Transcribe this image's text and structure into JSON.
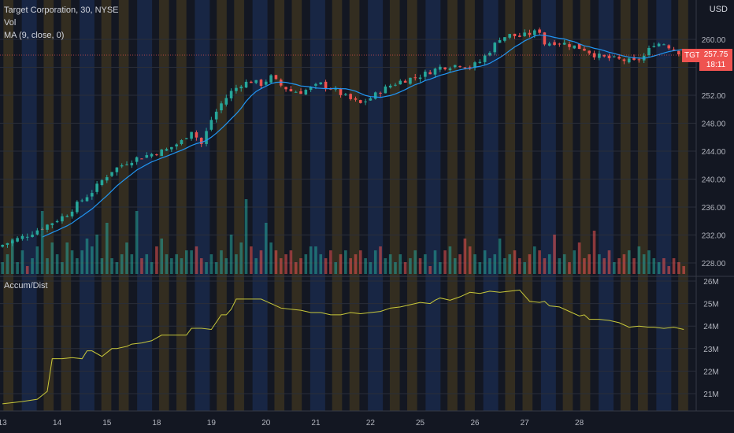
{
  "header": {
    "title": "Target Corporation, 30, NYSE",
    "vol_label": "Vol",
    "ma_label": "MA (9, close, 0)",
    "currency": "USD",
    "sub_title": "Accum/Dist"
  },
  "price_tags": {
    "ticker": "TGT",
    "last_price": "257.75",
    "countdown": "18:11"
  },
  "colors": {
    "background": "#131722",
    "up": "#26a69a",
    "down": "#ef5350",
    "ma": "#2196f3",
    "ad": "#c8c83a",
    "stripe_blue": "#1e3a6e",
    "stripe_orange": "#5a4a1e"
  },
  "chart_data": [
    {
      "type": "candlestick",
      "title": "Target Corporation, 30, NYSE",
      "ylim": [
        228,
        262
      ],
      "y_ticks": [
        "228.00",
        "232.00",
        "236.00",
        "240.00",
        "244.00",
        "248.00",
        "252.00",
        "256.00",
        "260.00"
      ],
      "x_ticks": [
        "13",
        "14",
        "15",
        "18",
        "19",
        "20",
        "21",
        "22",
        "25",
        "26",
        "27",
        "28"
      ],
      "close_path": [
        [
          0,
          230.6
        ],
        [
          5,
          232.0
        ],
        [
          10,
          233.8
        ],
        [
          13,
          235.0
        ],
        [
          15,
          236.4
        ],
        [
          18,
          238.2
        ],
        [
          20,
          239.8
        ],
        [
          22,
          241.2
        ],
        [
          25,
          242.4
        ],
        [
          27,
          243.0
        ],
        [
          30,
          243.6
        ],
        [
          33,
          244.2
        ],
        [
          36,
          245.4
        ],
        [
          38,
          247.0
        ],
        [
          40,
          245.0
        ],
        [
          42,
          248.5
        ],
        [
          44,
          250.8
        ],
        [
          46,
          252.5
        ],
        [
          48,
          253.6
        ],
        [
          50,
          254.0
        ],
        [
          52,
          253.6
        ],
        [
          54,
          254.6
        ],
        [
          56,
          253.4
        ],
        [
          58,
          252.6
        ],
        [
          60,
          252.5
        ],
        [
          62,
          253.0
        ],
        [
          64,
          253.6
        ],
        [
          66,
          253.0
        ],
        [
          68,
          252.2
        ],
        [
          70,
          251.4
        ],
        [
          72,
          250.8
        ],
        [
          74,
          251.6
        ],
        [
          76,
          252.6
        ],
        [
          78,
          253.4
        ],
        [
          80,
          254.0
        ],
        [
          82,
          254.4
        ],
        [
          84,
          254.8
        ],
        [
          86,
          255.4
        ],
        [
          88,
          256.0
        ],
        [
          90,
          256.2
        ],
        [
          92,
          256.4
        ],
        [
          94,
          256.0
        ],
        [
          96,
          256.8
        ],
        [
          98,
          258.4
        ],
        [
          100,
          260.2
        ],
        [
          102,
          260.6
        ],
        [
          104,
          260.4
        ],
        [
          106,
          260.8
        ],
        [
          108,
          261.2
        ],
        [
          109,
          259.4
        ],
        [
          111,
          259.6
        ],
        [
          113,
          259.4
        ],
        [
          115,
          259.0
        ],
        [
          117,
          258.6
        ],
        [
          119,
          257.8
        ],
        [
          121,
          257.4
        ],
        [
          123,
          257.2
        ],
        [
          125,
          257.0
        ],
        [
          127,
          256.8
        ],
        [
          129,
          257.6
        ],
        [
          131,
          259.4
        ],
        [
          133,
          259.4
        ],
        [
          135,
          258.6
        ],
        [
          137,
          257.8
        ]
      ],
      "annotation": "MA (9, close, 0)"
    },
    {
      "type": "bar",
      "title": "Vol",
      "note": "volume histogram, relative heights",
      "values": [
        3,
        5,
        9,
        3,
        6,
        2,
        4,
        7,
        16,
        4,
        8,
        5,
        3,
        8,
        6,
        4,
        6,
        9,
        7,
        10,
        4,
        13,
        4,
        3,
        5,
        8,
        5,
        16,
        4,
        5,
        3,
        7,
        9,
        5,
        4,
        5,
        4,
        6,
        6,
        7,
        4,
        3,
        5,
        3,
        6,
        4,
        10,
        5,
        8,
        19,
        7,
        4,
        6,
        13,
        8,
        6,
        4,
        5,
        6,
        3,
        4,
        5,
        7,
        7,
        5,
        4,
        6,
        3,
        5,
        6,
        4,
        5,
        6,
        4,
        3,
        6,
        7,
        4,
        5,
        3,
        5,
        3,
        4,
        6,
        4,
        5,
        2,
        6,
        3,
        6,
        7,
        4,
        5,
        9,
        7,
        5,
        3,
        6,
        4,
        5,
        9,
        4,
        5,
        6,
        4,
        3,
        5,
        7,
        6,
        4,
        5,
        10,
        4,
        5,
        3,
        6,
        8,
        4,
        5,
        11,
        5,
        4,
        6,
        3,
        4,
        5,
        6,
        4,
        7,
        5,
        6,
        4,
        3,
        4,
        2,
        4,
        3,
        2,
        3
      ]
    },
    {
      "type": "line",
      "title": "Accum/Dist",
      "ylim": [
        20.5,
        26.2
      ],
      "y_ticks": [
        "21M",
        "22M",
        "23M",
        "24M",
        "25M",
        "26M"
      ],
      "x": [
        0,
        4,
        7,
        9,
        10,
        12,
        14,
        16,
        17,
        18,
        20,
        22,
        23,
        25,
        26,
        28,
        30,
        32,
        34,
        36,
        37,
        38,
        40,
        42,
        44,
        45,
        46,
        47,
        48,
        49,
        52,
        54,
        56,
        58,
        60,
        62,
        64,
        66,
        68,
        70,
        72,
        74,
        76,
        78,
        80,
        82,
        84,
        86,
        87,
        88,
        90,
        92,
        94,
        96,
        98,
        100,
        102,
        104,
        106,
        108,
        109,
        110,
        112,
        114,
        116,
        117,
        118,
        120,
        122,
        124,
        126,
        128,
        130,
        131,
        133,
        135,
        137
      ],
      "values": [
        20.55,
        20.65,
        20.75,
        21.1,
        22.55,
        22.55,
        22.6,
        22.55,
        22.9,
        22.9,
        22.65,
        23.0,
        23.0,
        23.1,
        23.2,
        23.25,
        23.35,
        23.6,
        23.6,
        23.6,
        23.6,
        23.9,
        23.9,
        23.85,
        24.5,
        24.5,
        24.75,
        25.2,
        25.2,
        25.2,
        25.2,
        25.0,
        24.8,
        24.75,
        24.7,
        24.6,
        24.6,
        24.5,
        24.5,
        24.6,
        24.55,
        24.6,
        24.65,
        24.8,
        24.85,
        24.95,
        25.05,
        25.0,
        25.15,
        25.25,
        25.15,
        25.3,
        25.5,
        25.45,
        25.55,
        25.5,
        25.55,
        25.6,
        25.1,
        25.05,
        25.1,
        24.9,
        24.85,
        24.65,
        24.45,
        24.5,
        24.3,
        24.3,
        24.25,
        24.15,
        23.95,
        24.0,
        23.95,
        23.95,
        23.9,
        23.95,
        23.85
      ]
    }
  ]
}
